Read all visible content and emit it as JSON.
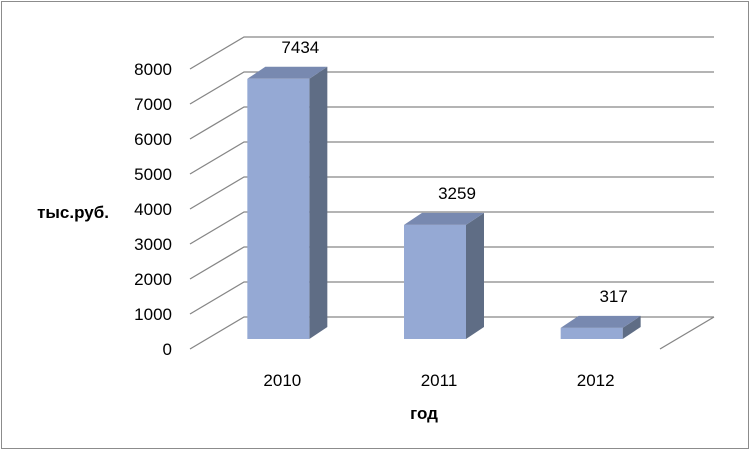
{
  "chart_data": {
    "type": "bar",
    "style": "3d-column",
    "categories": [
      "2010",
      "2011",
      "2012"
    ],
    "values": [
      7434,
      3259,
      317
    ],
    "data_labels": [
      "7434",
      "3259",
      "317"
    ],
    "title": "",
    "xlabel": "год",
    "ylabel": "тыс.руб.",
    "ylim": [
      0,
      8000
    ],
    "yticks": [
      "0",
      "1000",
      "2000",
      "3000",
      "4000",
      "5000",
      "6000",
      "7000",
      "8000"
    ],
    "grid": true,
    "legend": "none",
    "colors": {
      "front": "#95a9d4",
      "side": "#5f6d85",
      "top": "#7889b0",
      "grid": "#868686"
    }
  }
}
